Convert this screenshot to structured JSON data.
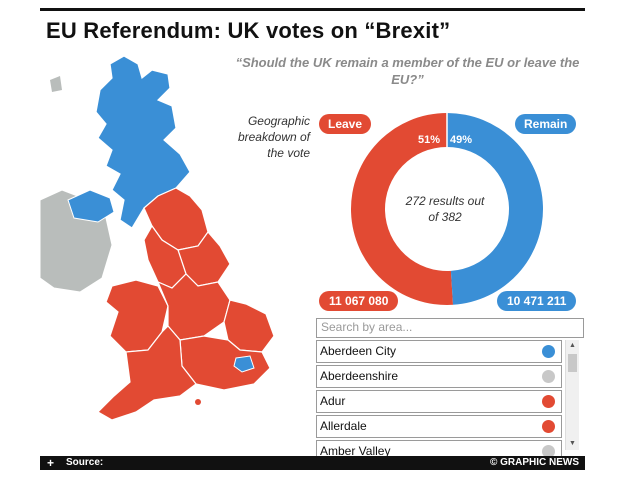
{
  "title": "EU Referendum: UK votes on “Brexit”",
  "question": "“Should the UK remain a member of the EU or leave the EU?”",
  "geo_label": "Geographic breakdown of the vote",
  "leave": {
    "label": "Leave",
    "percent": "51%",
    "votes": "11 067 080",
    "color": "#e24a33"
  },
  "remain": {
    "label": "Remain",
    "percent": "49%",
    "votes": "10 471 211",
    "color": "#3a8fd6"
  },
  "results_text": "272 results out of 382",
  "chart_data": {
    "type": "pie",
    "categories": [
      "Leave",
      "Remain"
    ],
    "values": [
      51,
      49
    ]
  },
  "search": {
    "placeholder": "Search by area..."
  },
  "areas": [
    {
      "name": "Aberdeen City",
      "status": "remain",
      "color": "#3a8fd6"
    },
    {
      "name": "Aberdeenshire",
      "status": "pending",
      "color": "#c8c8c8"
    },
    {
      "name": "Adur",
      "status": "leave",
      "color": "#e24a33"
    },
    {
      "name": "Allerdale",
      "status": "leave",
      "color": "#e24a33"
    },
    {
      "name": "Amber Valley",
      "status": "pending",
      "color": "#c8c8c8"
    }
  ],
  "footer": {
    "expand_icon": "+",
    "source_label": "Source:",
    "brand": "© GRAPHIC NEWS"
  }
}
